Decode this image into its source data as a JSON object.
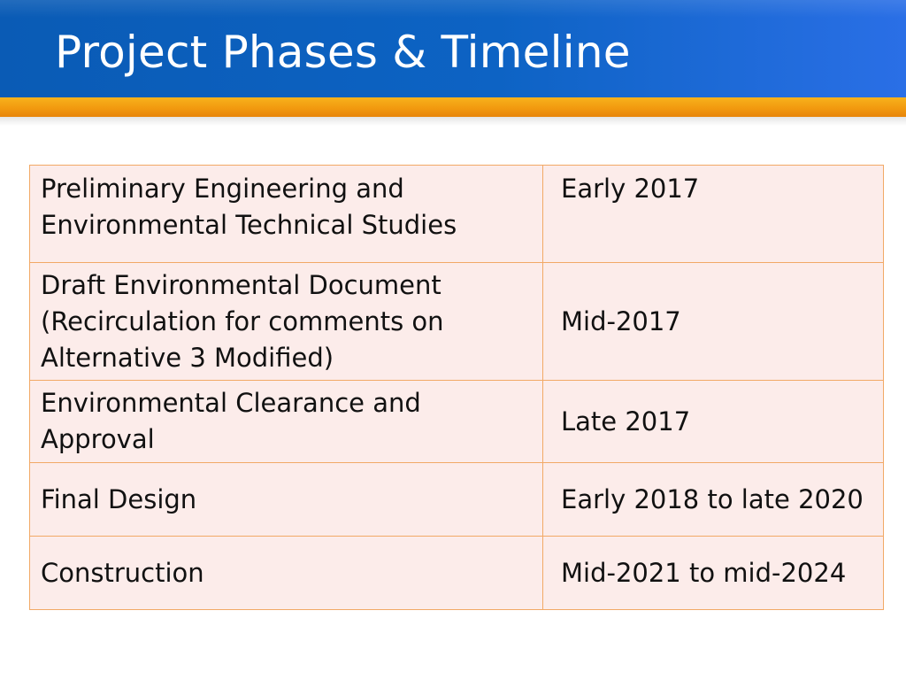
{
  "slide": {
    "title": "Project Phases & Timeline"
  },
  "timeline": {
    "rows": [
      {
        "phase": "Preliminary Engineering and Environmental Technical Studies",
        "date": "Early 2017"
      },
      {
        "phase": "Draft Environmental Document (Recirculation for comments on Alternative 3 Modified)",
        "date": "Mid-2017"
      },
      {
        "phase": "Environmental Clearance and Approval",
        "date": "Late 2017"
      },
      {
        "phase": "Final Design",
        "date": "Early 2018 to late 2020"
      },
      {
        "phase": "Construction",
        "date": "Mid-2021 to mid-2024"
      }
    ]
  },
  "colors": {
    "title_bar": "#0d63c4",
    "accent_bar": "#f29a0f",
    "cell_background": "#fcecea",
    "cell_border": "#f2a966"
  }
}
